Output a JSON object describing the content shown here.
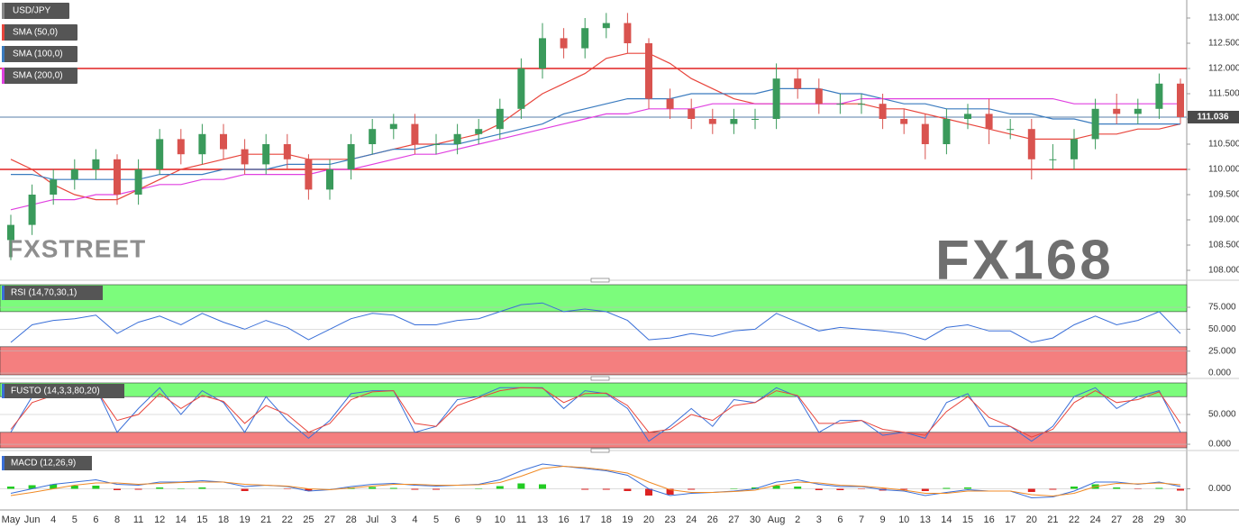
{
  "chart_data": [
    {
      "type": "candlestick",
      "title": "USD/JPY",
      "categories": [
        "May",
        "Jun",
        "4",
        "5",
        "6",
        "8",
        "11",
        "12",
        "14",
        "15",
        "18",
        "19",
        "21",
        "22",
        "25",
        "27",
        "28",
        "Jul",
        "3",
        "4",
        "5",
        "6",
        "9",
        "10",
        "11",
        "13",
        "16",
        "17",
        "18",
        "19",
        "20",
        "23",
        "24",
        "26",
        "27",
        "30",
        "Aug",
        "2",
        "3",
        "6",
        "7",
        "9",
        "10",
        "13",
        "14",
        "15",
        "16",
        "17",
        "20",
        "21",
        "22",
        "24",
        "27",
        "28",
        "29",
        "30"
      ],
      "open": [
        108.6,
        108.9,
        109.5,
        109.8,
        110.0,
        110.2,
        109.5,
        110.0,
        110.6,
        110.3,
        110.7,
        110.4,
        110.1,
        110.5,
        110.2,
        109.6,
        110.0,
        110.5,
        110.8,
        110.9,
        110.5,
        110.5,
        110.7,
        110.8,
        111.2,
        112.0,
        112.6,
        112.4,
        112.8,
        112.9,
        112.5,
        111.4,
        111.2,
        111.0,
        110.9,
        111.0,
        111.0,
        111.8,
        111.6,
        111.3,
        111.3,
        111.3,
        111.0,
        110.9,
        110.5,
        111.0,
        111.1,
        110.8,
        110.8,
        110.2,
        110.2,
        110.6,
        111.2,
        111.1,
        111.2,
        111.7
      ],
      "high": [
        109.1,
        109.7,
        110.0,
        110.2,
        110.4,
        110.3,
        110.2,
        110.8,
        110.8,
        110.9,
        110.9,
        110.6,
        110.7,
        110.7,
        110.3,
        110.2,
        110.7,
        111.0,
        111.1,
        111.1,
        110.7,
        110.9,
        111.0,
        111.4,
        112.2,
        112.9,
        112.8,
        113.0,
        113.1,
        113.1,
        112.6,
        111.6,
        111.4,
        111.2,
        111.2,
        111.2,
        112.1,
        112.0,
        111.8,
        111.5,
        111.5,
        111.5,
        111.2,
        111.1,
        111.2,
        111.3,
        111.4,
        111.0,
        111.0,
        110.5,
        110.8,
        111.4,
        111.5,
        111.4,
        111.9,
        111.8
      ],
      "low": [
        108.2,
        108.7,
        109.3,
        109.6,
        109.8,
        109.3,
        109.3,
        109.9,
        110.1,
        110.1,
        110.2,
        109.9,
        109.9,
        110.0,
        109.4,
        109.4,
        109.8,
        110.3,
        110.6,
        110.3,
        110.3,
        110.3,
        110.5,
        110.6,
        111.0,
        111.8,
        112.2,
        112.2,
        112.6,
        112.3,
        111.2,
        111.0,
        110.8,
        110.7,
        110.7,
        110.8,
        110.8,
        111.4,
        111.1,
        111.1,
        111.1,
        110.8,
        110.7,
        110.2,
        110.3,
        110.8,
        110.5,
        110.6,
        109.8,
        110.0,
        110.0,
        110.4,
        110.9,
        110.9,
        111.0,
        110.9
      ],
      "close": [
        108.9,
        109.5,
        109.8,
        110.0,
        110.2,
        109.5,
        110.0,
        110.6,
        110.3,
        110.7,
        110.4,
        110.1,
        110.5,
        110.2,
        109.6,
        110.0,
        110.5,
        110.8,
        110.9,
        110.5,
        110.5,
        110.7,
        110.8,
        111.2,
        112.0,
        112.6,
        112.4,
        112.8,
        112.9,
        112.5,
        111.4,
        111.2,
        111.0,
        110.9,
        111.0,
        111.0,
        111.8,
        111.6,
        111.3,
        111.3,
        111.3,
        111.0,
        110.9,
        110.5,
        111.0,
        111.1,
        110.8,
        110.8,
        110.2,
        110.2,
        110.6,
        111.2,
        111.1,
        111.2,
        111.7,
        111.036
      ],
      "up_color": "#3a9a5b",
      "down_color": "#d9534f",
      "series": [
        {
          "name": "SMA (50,0)",
          "color": "#e8453c",
          "values": [
            110.2,
            110.0,
            109.7,
            109.5,
            109.4,
            109.4,
            109.6,
            109.8,
            110.0,
            110.1,
            110.2,
            110.3,
            110.3,
            110.3,
            110.2,
            110.2,
            110.2,
            110.3,
            110.4,
            110.5,
            110.5,
            110.6,
            110.7,
            110.9,
            111.2,
            111.5,
            111.7,
            111.9,
            112.2,
            112.3,
            112.3,
            112.1,
            111.8,
            111.6,
            111.4,
            111.3,
            111.3,
            111.3,
            111.3,
            111.3,
            111.3,
            111.2,
            111.2,
            111.1,
            111.0,
            110.9,
            110.8,
            110.7,
            110.6,
            110.6,
            110.6,
            110.7,
            110.7,
            110.8,
            110.8,
            110.9
          ]
        },
        {
          "name": "SMA (100,0)",
          "color": "#3a7bbf",
          "values": [
            109.9,
            109.9,
            109.8,
            109.8,
            109.8,
            109.8,
            109.8,
            109.9,
            109.9,
            109.9,
            110.0,
            110.0,
            110.0,
            110.1,
            110.1,
            110.1,
            110.2,
            110.3,
            110.4,
            110.4,
            110.5,
            110.5,
            110.6,
            110.7,
            110.8,
            110.9,
            111.1,
            111.2,
            111.3,
            111.4,
            111.4,
            111.4,
            111.5,
            111.5,
            111.5,
            111.5,
            111.6,
            111.6,
            111.6,
            111.5,
            111.5,
            111.4,
            111.3,
            111.3,
            111.2,
            111.2,
            111.2,
            111.1,
            111.1,
            111.0,
            111.0,
            110.9,
            110.9,
            110.9,
            110.9,
            110.9
          ]
        },
        {
          "name": "SMA (200,0)",
          "color": "#e040e0",
          "values": [
            109.2,
            109.3,
            109.4,
            109.4,
            109.5,
            109.5,
            109.6,
            109.7,
            109.7,
            109.8,
            109.8,
            109.9,
            109.9,
            109.9,
            109.9,
            110.0,
            110.0,
            110.1,
            110.2,
            110.3,
            110.3,
            110.4,
            110.5,
            110.6,
            110.7,
            110.8,
            110.9,
            111.0,
            111.1,
            111.1,
            111.2,
            111.2,
            111.2,
            111.3,
            111.3,
            111.3,
            111.3,
            111.3,
            111.3,
            111.3,
            111.4,
            111.4,
            111.4,
            111.4,
            111.4,
            111.4,
            111.4,
            111.4,
            111.4,
            111.4,
            111.3,
            111.3,
            111.3,
            111.3,
            111.3,
            111.3
          ]
        }
      ],
      "hlines": [
        112,
        110
      ],
      "hline_color": "#e02020",
      "last_price": {
        "value": 111.036,
        "label": "111.036"
      },
      "last_price_color": "#5a7fa8",
      "ylim": [
        107.875,
        113.357
      ],
      "yticks": [
        {
          "value": 113,
          "label": "113.000"
        },
        {
          "value": 112.5,
          "label": "112.500"
        },
        {
          "value": 112,
          "label": "112.000"
        },
        {
          "value": 111.5,
          "label": "111.500"
        },
        {
          "value": 111,
          "label": "111.000"
        },
        {
          "value": 110.5,
          "label": "110.500"
        },
        {
          "value": 110,
          "label": "110.000"
        },
        {
          "value": 109.5,
          "label": "109.500"
        },
        {
          "value": 109,
          "label": "109.000"
        },
        {
          "value": 108.5,
          "label": "108.500"
        },
        {
          "value": 108,
          "label": "108.000"
        }
      ],
      "watermarks": [
        "FXSTREET",
        "FX168"
      ]
    },
    {
      "type": "line",
      "title": "RSI (14,70,30,1)",
      "series": [
        {
          "color": "#3a6fd8",
          "values": [
            35,
            55,
            60,
            62,
            66,
            45,
            58,
            65,
            55,
            68,
            58,
            50,
            60,
            52,
            38,
            50,
            62,
            68,
            66,
            55,
            55,
            60,
            62,
            70,
            78,
            80,
            70,
            73,
            70,
            60,
            38,
            40,
            45,
            42,
            48,
            50,
            68,
            58,
            48,
            52,
            50,
            48,
            45,
            38,
            52,
            55,
            48,
            48,
            35,
            40,
            55,
            65,
            55,
            60,
            70,
            45
          ]
        }
      ],
      "upper_band": 70,
      "lower_band": 30,
      "upper_color": "#7cfc7c",
      "lower_color": "#f47f7f",
      "ylim": [
        -2,
        100.7
      ],
      "yticks": [
        {
          "value": 75,
          "label": "75.000"
        },
        {
          "value": 50,
          "label": "50.000"
        },
        {
          "value": 25,
          "label": "25.000"
        },
        {
          "value": 0,
          "label": "0.000"
        }
      ]
    },
    {
      "type": "line",
      "title": "FUSTO (14,3,3,80,20)",
      "series": [
        {
          "color": "#3a6fd8",
          "values": [
            20,
            80,
            85,
            90,
            95,
            20,
            60,
            95,
            50,
            90,
            70,
            20,
            80,
            40,
            10,
            40,
            85,
            90,
            90,
            20,
            30,
            75,
            80,
            95,
            95,
            95,
            60,
            90,
            85,
            60,
            5,
            30,
            60,
            30,
            75,
            70,
            95,
            80,
            20,
            40,
            40,
            15,
            20,
            10,
            70,
            85,
            30,
            30,
            5,
            30,
            80,
            95,
            60,
            80,
            90,
            20
          ]
        },
        {
          "color": "#e8453c",
          "values": [
            25,
            70,
            82,
            88,
            92,
            40,
            50,
            85,
            60,
            82,
            72,
            35,
            65,
            50,
            20,
            35,
            75,
            88,
            90,
            35,
            30,
            65,
            78,
            90,
            95,
            94,
            70,
            85,
            86,
            65,
            20,
            25,
            50,
            40,
            65,
            70,
            90,
            82,
            35,
            35,
            40,
            25,
            20,
            15,
            55,
            80,
            45,
            30,
            12,
            25,
            70,
            90,
            70,
            75,
            88,
            35
          ]
        }
      ],
      "upper_band": 80,
      "lower_band": 20,
      "upper_color": "#7cfc7c",
      "lower_color": "#f47f7f",
      "ylim": [
        -6,
        103
      ],
      "yticks": [
        {
          "value": 50,
          "label": "50.000"
        },
        {
          "value": 0,
          "label": "0.000"
        }
      ]
    },
    {
      "type": "line",
      "title": "MACD (12,26,9)",
      "series": [
        {
          "color": "#3a6fd8",
          "values": [
            -0.1,
            0.0,
            0.1,
            0.15,
            0.2,
            0.1,
            0.08,
            0.15,
            0.15,
            0.18,
            0.15,
            0.05,
            0.08,
            0.05,
            -0.05,
            -0.02,
            0.05,
            0.1,
            0.12,
            0.08,
            0.06,
            0.08,
            0.1,
            0.2,
            0.4,
            0.55,
            0.5,
            0.45,
            0.4,
            0.3,
            0.0,
            -0.15,
            -0.1,
            -0.08,
            -0.05,
            0.0,
            0.15,
            0.2,
            0.1,
            0.05,
            0.05,
            -0.02,
            -0.05,
            -0.15,
            -0.08,
            -0.02,
            -0.05,
            -0.05,
            -0.2,
            -0.18,
            -0.05,
            0.15,
            0.15,
            0.1,
            0.15,
            0.05
          ]
        },
        {
          "color": "#f08a24",
          "values": [
            -0.15,
            -0.08,
            0.0,
            0.08,
            0.13,
            0.13,
            0.1,
            0.12,
            0.14,
            0.15,
            0.15,
            0.1,
            0.08,
            0.06,
            0.0,
            -0.02,
            0.02,
            0.06,
            0.1,
            0.1,
            0.08,
            0.08,
            0.09,
            0.14,
            0.28,
            0.45,
            0.5,
            0.47,
            0.42,
            0.35,
            0.15,
            -0.02,
            -0.08,
            -0.08,
            -0.06,
            -0.03,
            0.08,
            0.15,
            0.13,
            0.08,
            0.06,
            0.02,
            -0.03,
            -0.1,
            -0.1,
            -0.05,
            -0.05,
            -0.05,
            -0.13,
            -0.16,
            -0.1,
            0.05,
            0.12,
            0.11,
            0.13,
            0.09
          ]
        }
      ],
      "histogram": {
        "up_color": "#22cc22",
        "down_color": "#dd2222",
        "values": [
          0.05,
          0.08,
          0.1,
          0.07,
          0.07,
          -0.03,
          -0.02,
          0.03,
          0.01,
          0.03,
          0,
          -0.05,
          0,
          -0.01,
          -0.05,
          0,
          0.03,
          0.04,
          0.02,
          -0.02,
          -0.02,
          0,
          0.01,
          0.06,
          0.12,
          0.1,
          0,
          -0.02,
          -0.02,
          -0.05,
          -0.15,
          -0.13,
          -0.02,
          0,
          0.01,
          0.03,
          0.07,
          0.05,
          -0.03,
          -0.03,
          -0.01,
          -0.04,
          -0.02,
          -0.05,
          0.02,
          0.03,
          0,
          0,
          -0.07,
          -0.02,
          0.05,
          0.1,
          0.03,
          -0.01,
          0.02,
          -0.04
        ]
      },
      "ylim": [
        -0.45,
        0.75
      ],
      "yticks": [
        {
          "value": 0,
          "label": "0.000"
        }
      ]
    }
  ]
}
